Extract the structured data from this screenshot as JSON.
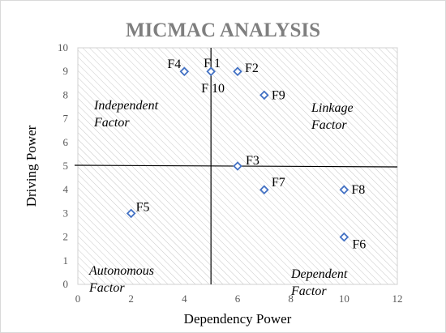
{
  "chart_data": {
    "type": "scatter",
    "title": "MICMAC ANALYSIS",
    "xlabel": "Dependency Power",
    "ylabel": "Driving Power",
    "xlim": [
      0,
      12
    ],
    "ylim": [
      0,
      10
    ],
    "x_ticks": [
      0,
      2,
      4,
      6,
      8,
      10,
      12
    ],
    "y_ticks": [
      0,
      1,
      2,
      3,
      4,
      5,
      6,
      7,
      8,
      9,
      10
    ],
    "grid": false,
    "legend": "none",
    "divider": {
      "x": 5,
      "y": 5
    },
    "marker_color": "#4472c4",
    "points": [
      {
        "label": "F4",
        "x": 4,
        "y": 9
      },
      {
        "label": "F 1",
        "x": 5,
        "y": 9
      },
      {
        "label": "F 10",
        "x": 5,
        "y": 9
      },
      {
        "label": "F2",
        "x": 6,
        "y": 9
      },
      {
        "label": "F9",
        "x": 7,
        "y": 8
      },
      {
        "label": "F3",
        "x": 6,
        "y": 5
      },
      {
        "label": "F7",
        "x": 7,
        "y": 4
      },
      {
        "label": "F8",
        "x": 10,
        "y": 4
      },
      {
        "label": "F5",
        "x": 2,
        "y": 3
      },
      {
        "label": "F6",
        "x": 10,
        "y": 2
      }
    ],
    "quadrants": [
      {
        "name": "independent",
        "lines": [
          "Independent",
          "Factor"
        ]
      },
      {
        "name": "linkage",
        "lines": [
          "Linkage",
          "Factor"
        ]
      },
      {
        "name": "autonomous",
        "lines": [
          "Autonomous",
          "Factor"
        ]
      },
      {
        "name": "dependent",
        "lines": [
          "Dependent",
          "Factor"
        ]
      }
    ]
  }
}
